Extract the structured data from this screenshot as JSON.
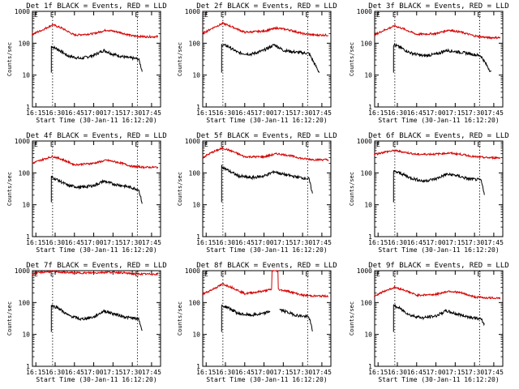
{
  "chart_data": [
    {
      "type": "line",
      "title": "Det 1f BLACK = Events, RED = LLD",
      "xlabel": "Start Time (30-Jan-11 16:12:20)",
      "ylabel": "Counts/sec",
      "yscale": "log",
      "ylim": [
        1,
        1000
      ],
      "xlim": [
        "16:12:20",
        "17:52:00"
      ],
      "x_ticks": [
        "16:15",
        "16:30",
        "16:45",
        "17:00",
        "17:15",
        "17:30",
        "17:45"
      ],
      "y_ticks": [
        "1",
        "10",
        "100",
        "1000"
      ],
      "markers": [
        "16:28",
        "17:34"
      ],
      "marker_label": "E",
      "black_end": "17:38",
      "series": [
        {
          "name": "Events",
          "color": "#000000",
          "x": [
            "16:27",
            "16:32",
            "16:40",
            "16:50",
            "17:00",
            "17:08",
            "17:15",
            "17:25",
            "17:35",
            "17:38"
          ],
          "y": [
            80,
            65,
            40,
            33,
            42,
            60,
            45,
            36,
            32,
            12
          ]
        },
        {
          "name": "LLD",
          "color": "#d40000",
          "x": [
            "16:12",
            "16:20",
            "16:28",
            "16:35",
            "16:45",
            "17:00",
            "17:10",
            "17:20",
            "17:30",
            "17:40",
            "17:50"
          ],
          "y": [
            190,
            260,
            380,
            300,
            180,
            200,
            260,
            220,
            170,
            160,
            160
          ]
        }
      ]
    },
    {
      "type": "line",
      "title": "Det 2f BLACK = Events, RED = LLD",
      "xlabel": "Start Time (30-Jan-11 16:12:20)",
      "ylabel": "Counts/sec",
      "yscale": "log",
      "ylim": [
        1,
        1000
      ],
      "xlim": [
        "16:12:20",
        "17:52:00"
      ],
      "x_ticks": [
        "16:15",
        "16:30",
        "16:45",
        "17:00",
        "17:15",
        "17:30",
        "17:45"
      ],
      "y_ticks": [
        "1",
        "10",
        "100",
        "1000"
      ],
      "markers": [
        "16:28",
        "17:34"
      ],
      "marker_label": "E",
      "black_end": "17:43",
      "series": [
        {
          "name": "Events",
          "color": "#000000",
          "x": [
            "16:27",
            "16:32",
            "16:40",
            "16:50",
            "17:00",
            "17:08",
            "17:15",
            "17:25",
            "17:35",
            "17:43"
          ],
          "y": [
            90,
            80,
            50,
            45,
            60,
            90,
            60,
            52,
            48,
            12
          ]
        },
        {
          "name": "LLD",
          "color": "#d40000",
          "x": [
            "16:12",
            "16:20",
            "16:28",
            "16:35",
            "16:45",
            "17:00",
            "17:10",
            "17:20",
            "17:30",
            "17:40",
            "17:50"
          ],
          "y": [
            200,
            300,
            420,
            330,
            220,
            240,
            300,
            260,
            200,
            180,
            180
          ]
        }
      ]
    },
    {
      "type": "line",
      "title": "Det 3f BLACK = Events, RED = LLD",
      "xlabel": "Start Time (30-Jan-11 16:12:20)",
      "ylabel": "Counts/sec",
      "yscale": "log",
      "ylim": [
        1,
        1000
      ],
      "xlim": [
        "16:12:20",
        "17:52:00"
      ],
      "x_ticks": [
        "16:15",
        "16:30",
        "16:45",
        "17:00",
        "17:15",
        "17:30",
        "17:45"
      ],
      "y_ticks": [
        "1",
        "10",
        "100",
        "1000"
      ],
      "markers": [
        "16:28",
        "17:34"
      ],
      "marker_label": "E",
      "black_end": "17:43",
      "series": [
        {
          "name": "Events",
          "color": "#000000",
          "x": [
            "16:27",
            "16:32",
            "16:40",
            "16:50",
            "17:00",
            "17:08",
            "17:15",
            "17:25",
            "17:35",
            "17:43"
          ],
          "y": [
            90,
            75,
            50,
            40,
            45,
            60,
            55,
            48,
            40,
            12
          ]
        },
        {
          "name": "LLD",
          "color": "#d40000",
          "x": [
            "16:12",
            "16:20",
            "16:28",
            "16:35",
            "16:45",
            "17:00",
            "17:10",
            "17:20",
            "17:30",
            "17:40",
            "17:50"
          ],
          "y": [
            180,
            260,
            350,
            280,
            190,
            200,
            260,
            220,
            170,
            150,
            150
          ]
        }
      ]
    },
    {
      "type": "line",
      "title": "Det 4f BLACK = Events, RED = LLD",
      "xlabel": "Start Time (30-Jan-11 16:12:20)",
      "ylabel": "Counts/sec",
      "yscale": "log",
      "ylim": [
        1,
        1000
      ],
      "xlim": [
        "16:12:20",
        "17:52:00"
      ],
      "x_ticks": [
        "16:15",
        "16:30",
        "16:45",
        "17:00",
        "17:15",
        "17:30",
        "17:45"
      ],
      "y_ticks": [
        "1",
        "10",
        "100",
        "1000"
      ],
      "markers": [
        "16:28",
        "17:34"
      ],
      "marker_label": "E",
      "black_end": "17:38",
      "series": [
        {
          "name": "Events",
          "color": "#000000",
          "x": [
            "16:27",
            "16:32",
            "16:40",
            "16:50",
            "17:00",
            "17:08",
            "17:15",
            "17:25",
            "17:35",
            "17:38"
          ],
          "y": [
            75,
            60,
            40,
            35,
            40,
            55,
            45,
            38,
            30,
            10
          ]
        },
        {
          "name": "LLD",
          "color": "#d40000",
          "x": [
            "16:12",
            "16:20",
            "16:28",
            "16:35",
            "16:45",
            "17:00",
            "17:10",
            "17:20",
            "17:30",
            "17:40",
            "17:50"
          ],
          "y": [
            200,
            260,
            330,
            270,
            180,
            200,
            250,
            210,
            160,
            150,
            150
          ]
        }
      ]
    },
    {
      "type": "line",
      "title": "Det 5f BLACK = Events, RED = LLD",
      "xlabel": "Start Time (30-Jan-11 16:12:20)",
      "ylabel": "Counts/sec",
      "yscale": "log",
      "ylim": [
        1,
        1000
      ],
      "xlim": [
        "16:12:20",
        "17:52:00"
      ],
      "x_ticks": [
        "16:15",
        "16:30",
        "16:45",
        "17:00",
        "17:15",
        "17:30",
        "17:45"
      ],
      "y_ticks": [
        "1",
        "10",
        "100",
        "1000"
      ],
      "markers": [
        "16:28",
        "17:34"
      ],
      "marker_label": "E",
      "black_end": "17:38",
      "series": [
        {
          "name": "Events",
          "color": "#000000",
          "x": [
            "16:27",
            "16:32",
            "16:40",
            "16:50",
            "17:00",
            "17:08",
            "17:15",
            "17:25",
            "17:35",
            "17:38"
          ],
          "y": [
            160,
            120,
            80,
            70,
            80,
            110,
            90,
            75,
            65,
            20
          ]
        },
        {
          "name": "LLD",
          "color": "#d40000",
          "x": [
            "16:12",
            "16:20",
            "16:28",
            "16:35",
            "16:45",
            "17:00",
            "17:10",
            "17:20",
            "17:30",
            "17:40",
            "17:50"
          ],
          "y": [
            300,
            450,
            600,
            480,
            320,
            320,
            400,
            350,
            280,
            260,
            260
          ]
        }
      ]
    },
    {
      "type": "line",
      "title": "Det 6f BLACK = Events, RED = LLD",
      "xlabel": "Start Time (30-Jan-11 16:12:20)",
      "ylabel": "Counts/sec",
      "yscale": "log",
      "ylim": [
        1,
        1000
      ],
      "xlim": [
        "16:12:20",
        "17:52:00"
      ],
      "x_ticks": [
        "16:15",
        "16:30",
        "16:45",
        "17:00",
        "17:15",
        "17:30",
        "17:45"
      ],
      "y_ticks": [
        "1",
        "10",
        "100",
        "1000"
      ],
      "markers": [
        "16:28",
        "17:34"
      ],
      "marker_label": "E",
      "black_end": "17:38",
      "series": [
        {
          "name": "Events",
          "color": "#000000",
          "x": [
            "16:27",
            "16:32",
            "16:40",
            "16:50",
            "17:00",
            "17:08",
            "17:15",
            "17:25",
            "17:35",
            "17:38"
          ],
          "y": [
            110,
            100,
            70,
            55,
            65,
            90,
            85,
            65,
            60,
            20
          ]
        },
        {
          "name": "LLD",
          "color": "#d40000",
          "x": [
            "16:12",
            "16:20",
            "16:28",
            "16:35",
            "16:45",
            "17:00",
            "17:10",
            "17:20",
            "17:30",
            "17:40",
            "17:50"
          ],
          "y": [
            380,
            450,
            500,
            450,
            380,
            390,
            420,
            380,
            320,
            300,
            300
          ]
        }
      ]
    },
    {
      "type": "line",
      "title": "Det 7f BLACK = Events, RED = LLD",
      "xlabel": "Start Time (30-Jan-11 16:12:20)",
      "ylabel": "Counts/sec",
      "yscale": "log",
      "ylim": [
        1,
        1000
      ],
      "xlim": [
        "16:12:20",
        "17:52:00"
      ],
      "x_ticks": [
        "16:15",
        "16:30",
        "16:45",
        "17:00",
        "17:15",
        "17:30",
        "17:45"
      ],
      "y_ticks": [
        "1",
        "10",
        "100",
        "1000"
      ],
      "markers": [
        "16:28",
        "17:34"
      ],
      "marker_label": "E",
      "black_end": "17:38",
      "series": [
        {
          "name": "Events",
          "color": "#000000",
          "x": [
            "16:27",
            "16:32",
            "16:40",
            "16:50",
            "17:00",
            "17:08",
            "17:15",
            "17:25",
            "17:35",
            "17:38"
          ],
          "y": [
            80,
            70,
            40,
            30,
            35,
            55,
            45,
            35,
            30,
            12
          ]
        },
        {
          "name": "LLD",
          "color": "#d40000",
          "x": [
            "16:12",
            "16:20",
            "16:28",
            "16:35",
            "16:45",
            "17:00",
            "17:10",
            "17:20",
            "17:30",
            "17:40",
            "17:50"
          ],
          "y": [
            800,
            900,
            950,
            900,
            850,
            850,
            900,
            880,
            800,
            780,
            780
          ]
        }
      ]
    },
    {
      "type": "line",
      "title": "Det 8f BLACK = Events, RED = LLD",
      "xlabel": "Start Time (30-Jan-11 16:12:20)",
      "ylabel": "Counts/sec",
      "yscale": "log",
      "ylim": [
        1,
        1000
      ],
      "xlim": [
        "16:12:20",
        "17:52:00"
      ],
      "x_ticks": [
        "16:15",
        "16:30",
        "16:45",
        "17:00",
        "17:15",
        "17:30",
        "17:45"
      ],
      "y_ticks": [
        "1",
        "10",
        "100",
        "1000"
      ],
      "markers": [
        "16:28",
        "17:34"
      ],
      "marker_label": "E",
      "black_end": "17:38",
      "black_gap": [
        "17:05",
        "17:12"
      ],
      "series": [
        {
          "name": "Events",
          "color": "#000000",
          "x": [
            "16:27",
            "16:32",
            "16:40",
            "16:50",
            "17:00",
            "17:05",
            "17:12",
            "17:18",
            "17:25",
            "17:35",
            "17:38"
          ],
          "y": [
            80,
            70,
            45,
            40,
            45,
            55,
            60,
            50,
            40,
            35,
            12
          ]
        },
        {
          "name": "LLD",
          "color": "#d40000",
          "x": [
            "16:12",
            "16:20",
            "16:28",
            "16:35",
            "16:45",
            "17:00",
            "17:06",
            "17:06",
            "17:11",
            "17:11",
            "17:20",
            "17:30",
            "17:40",
            "17:50"
          ],
          "y": [
            180,
            260,
            380,
            300,
            190,
            230,
            260,
            1000,
            1000,
            260,
            220,
            170,
            160,
            160
          ]
        }
      ]
    },
    {
      "type": "line",
      "title": "Det 9f BLACK = Events, RED = LLD",
      "xlabel": "Start Time (30-Jan-11 16:12:20)",
      "ylabel": "Counts/sec",
      "yscale": "log",
      "ylim": [
        1,
        1000
      ],
      "xlim": [
        "16:12:20",
        "17:52:00"
      ],
      "x_ticks": [
        "16:15",
        "16:30",
        "16:45",
        "17:00",
        "17:15",
        "17:30",
        "17:45"
      ],
      "y_ticks": [
        "1",
        "10",
        "100",
        "1000"
      ],
      "markers": [
        "16:28",
        "17:34"
      ],
      "marker_label": "E",
      "black_end": "17:38",
      "series": [
        {
          "name": "Events",
          "color": "#000000",
          "x": [
            "16:27",
            "16:32",
            "16:40",
            "16:50",
            "17:00",
            "17:08",
            "17:15",
            "17:25",
            "17:35",
            "17:38"
          ],
          "y": [
            80,
            65,
            40,
            33,
            38,
            55,
            45,
            36,
            30,
            20
          ]
        },
        {
          "name": "LLD",
          "color": "#d40000",
          "x": [
            "16:12",
            "16:20",
            "16:28",
            "16:35",
            "16:45",
            "17:00",
            "17:10",
            "17:20",
            "17:30",
            "17:40",
            "17:50"
          ],
          "y": [
            160,
            230,
            300,
            250,
            170,
            180,
            230,
            200,
            150,
            140,
            140
          ]
        }
      ]
    }
  ]
}
